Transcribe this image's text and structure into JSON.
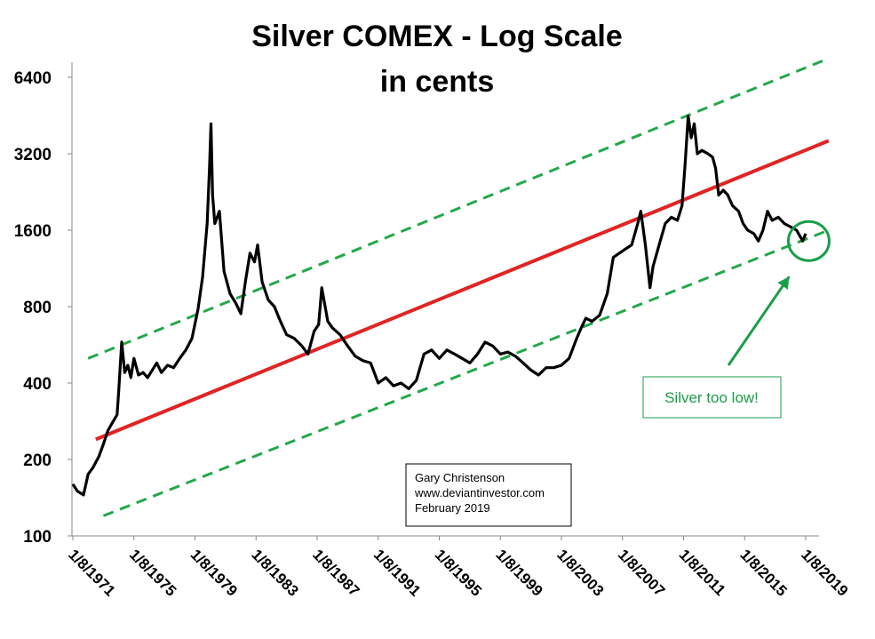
{
  "chart_data": {
    "type": "line",
    "title": "Silver COMEX - Log Scale",
    "subtitle": "in cents",
    "xlabel": "",
    "ylabel": "",
    "yscale": "log2",
    "ylim": [
      100,
      8000
    ],
    "xlim": [
      "1/8/1971",
      "1/8/2019"
    ],
    "y_ticks": [
      100,
      200,
      400,
      800,
      1600,
      3200,
      6400
    ],
    "x_ticks": [
      "1/8/1971",
      "1/8/1975",
      "1/8/1979",
      "1/8/1983",
      "1/8/1987",
      "1/8/1991",
      "1/8/1995",
      "1/8/1999",
      "1/8/2003",
      "1/8/2007",
      "1/8/2011",
      "1/8/2015",
      "1/8/2019"
    ],
    "grid": false,
    "series": [
      {
        "name": "",
        "color": "#000000",
        "style": "solid",
        "x": [
          1971.0,
          1971.3,
          1971.7,
          1972.0,
          1972.3,
          1972.7,
          1973.0,
          1973.3,
          1973.6,
          1973.9,
          1974.0,
          1974.2,
          1974.4,
          1974.6,
          1974.8,
          1975.0,
          1975.3,
          1975.6,
          1975.9,
          1976.2,
          1976.5,
          1976.8,
          1977.2,
          1977.6,
          1978.0,
          1978.4,
          1978.8,
          1979.2,
          1979.5,
          1979.8,
          1979.95,
          1980.05,
          1980.15,
          1980.3,
          1980.6,
          1980.9,
          1981.3,
          1981.7,
          1982.0,
          1982.3,
          1982.6,
          1982.9,
          1983.1,
          1983.4,
          1983.8,
          1984.2,
          1984.6,
          1985.0,
          1985.5,
          1986.0,
          1986.4,
          1986.8,
          1987.1,
          1987.3,
          1987.7,
          1988.0,
          1988.5,
          1989.0,
          1989.5,
          1990.0,
          1990.5,
          1991.0,
          1991.5,
          1992.0,
          1992.5,
          1993.0,
          1993.5,
          1994.0,
          1994.5,
          1995.0,
          1995.5,
          1996.0,
          1996.5,
          1997.0,
          1997.5,
          1998.0,
          1998.5,
          1999.0,
          1999.5,
          2000.0,
          2000.5,
          2001.0,
          2001.5,
          2002.0,
          2002.5,
          2003.0,
          2003.5,
          2004.0,
          2004.3,
          2004.6,
          2005.0,
          2005.5,
          2006.0,
          2006.4,
          2006.8,
          2007.2,
          2007.6,
          2008.0,
          2008.2,
          2008.5,
          2008.8,
          2009.0,
          2009.4,
          2009.8,
          2010.2,
          2010.6,
          2010.9,
          2011.1,
          2011.3,
          2011.5,
          2011.7,
          2011.9,
          2012.2,
          2012.6,
          2012.9,
          2013.1,
          2013.3,
          2013.6,
          2013.9,
          2014.2,
          2014.6,
          2014.9,
          2015.2,
          2015.6,
          2015.9,
          2016.2,
          2016.5,
          2016.8,
          2017.2,
          2017.6,
          2018.0,
          2018.4,
          2018.8,
          2019.0
        ],
        "values": [
          160,
          150,
          145,
          175,
          185,
          205,
          230,
          260,
          280,
          300,
          370,
          580,
          440,
          470,
          420,
          500,
          430,
          440,
          420,
          450,
          480,
          440,
          470,
          460,
          500,
          540,
          600,
          780,
          1050,
          1700,
          2800,
          4200,
          2200,
          1700,
          1900,
          1100,
          900,
          820,
          750,
          1000,
          1300,
          1200,
          1400,
          1000,
          850,
          800,
          700,
          620,
          600,
          560,
          520,
          640,
          680,
          950,
          700,
          660,
          620,
          560,
          510,
          490,
          480,
          400,
          420,
          390,
          400,
          380,
          410,
          520,
          540,
          500,
          540,
          520,
          500,
          480,
          520,
          580,
          560,
          520,
          530,
          510,
          480,
          450,
          430,
          460,
          460,
          470,
          500,
          600,
          660,
          720,
          700,
          740,
          900,
          1250,
          1300,
          1350,
          1400,
          1700,
          1900,
          1400,
          950,
          1150,
          1400,
          1700,
          1800,
          1750,
          2000,
          2900,
          4500,
          3700,
          4200,
          3200,
          3300,
          3200,
          3100,
          2800,
          2200,
          2300,
          2200,
          2000,
          1900,
          1700,
          1600,
          1550,
          1450,
          1600,
          1900,
          1750,
          1800,
          1700,
          1650,
          1600,
          1450,
          1550
        ]
      },
      {
        "name": "",
        "color": "#e02424",
        "style": "solid",
        "x": [
          1972.5,
          2020.5
        ],
        "values": [
          240,
          3600
        ]
      },
      {
        "name": "",
        "color": "#22a84a",
        "style": "dashed",
        "x": [
          1972.0,
          2020.5
        ],
        "values": [
          500,
          7600
        ]
      },
      {
        "name": "",
        "color": "#22a84a",
        "style": "dashed",
        "x": [
          1973.0,
          2020.5
        ],
        "values": [
          120,
          1600
        ]
      }
    ],
    "annotations": {
      "credit_lines": [
        "Gary Christenson",
        "www.deviantinvestor.com",
        "February 2019"
      ],
      "callout_text": "Silver too low!",
      "callout_color": "#1a9e4a",
      "circle_center": {
        "x": 2019.2,
        "y": 1450
      }
    }
  }
}
